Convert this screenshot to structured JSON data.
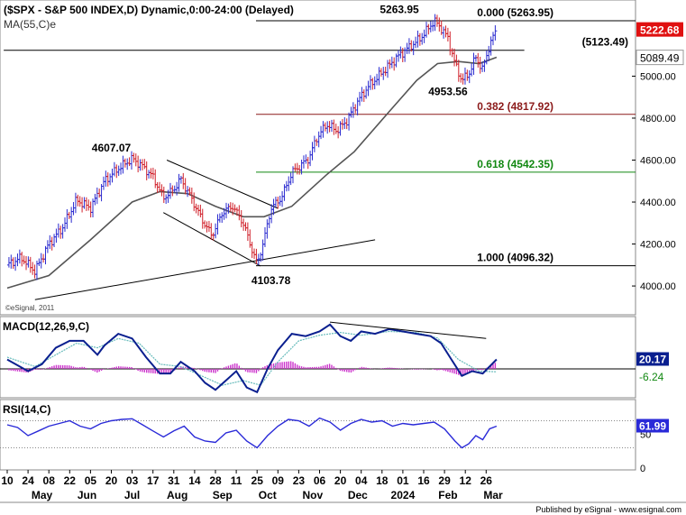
{
  "header": {
    "title": "($SPX - S&P 500 INDEX,D) Dynamic,0:00-24:00 (Delayed)",
    "ma_label": "MA(55,C)e",
    "copyright": "©eSignal, 2011",
    "footer": "Published by eSignal - www.esignal.com"
  },
  "colors": {
    "up_bar": "#2b2bd0",
    "down_bar": "#d0202a",
    "ma": "#555555",
    "macd": "#0a1f8f",
    "signal": "#66bbbb",
    "histogram": "#cc33cc",
    "rsi": "#2a2ad8",
    "fib_red": "#8b1a1a",
    "fib_green": "#118811",
    "last_price_bg": "#e01010"
  },
  "chart_data": [
    {
      "type": "line",
      "panel": "price",
      "ylim": [
        3880,
        5320
      ],
      "yticks": [
        "4000.00",
        "4200.00",
        "4400.00",
        "4600.00",
        "4800.00",
        "5000.00"
      ],
      "price_path": [
        {
          "x": 0,
          "y": 4100
        },
        {
          "x": 4,
          "y": 4135
        },
        {
          "x": 8,
          "y": 4070
        },
        {
          "x": 12,
          "y": 4200
        },
        {
          "x": 16,
          "y": 4280
        },
        {
          "x": 20,
          "y": 4410
        },
        {
          "x": 24,
          "y": 4370
        },
        {
          "x": 28,
          "y": 4500
        },
        {
          "x": 32,
          "y": 4560
        },
        {
          "x": 36,
          "y": 4607
        },
        {
          "x": 39,
          "y": 4570
        },
        {
          "x": 42,
          "y": 4520
        },
        {
          "x": 45,
          "y": 4420
        },
        {
          "x": 48,
          "y": 4460
        },
        {
          "x": 50,
          "y": 4510
        },
        {
          "x": 53,
          "y": 4420
        },
        {
          "x": 56,
          "y": 4320
        },
        {
          "x": 59,
          "y": 4240
        },
        {
          "x": 62,
          "y": 4350
        },
        {
          "x": 65,
          "y": 4380
        },
        {
          "x": 68,
          "y": 4300
        },
        {
          "x": 70,
          "y": 4200
        },
        {
          "x": 72,
          "y": 4104
        },
        {
          "x": 74,
          "y": 4220
        },
        {
          "x": 76,
          "y": 4370
        },
        {
          "x": 79,
          "y": 4420
        },
        {
          "x": 82,
          "y": 4540
        },
        {
          "x": 85,
          "y": 4580
        },
        {
          "x": 87,
          "y": 4610
        },
        {
          "x": 89,
          "y": 4700
        },
        {
          "x": 92,
          "y": 4770
        },
        {
          "x": 95,
          "y": 4740
        },
        {
          "x": 98,
          "y": 4790
        },
        {
          "x": 101,
          "y": 4880
        },
        {
          "x": 104,
          "y": 4950
        },
        {
          "x": 107,
          "y": 5000
        },
        {
          "x": 110,
          "y": 5050
        },
        {
          "x": 113,
          "y": 5100
        },
        {
          "x": 116,
          "y": 5140
        },
        {
          "x": 119,
          "y": 5180
        },
        {
          "x": 121,
          "y": 5220
        },
        {
          "x": 123,
          "y": 5264
        },
        {
          "x": 125,
          "y": 5230
        },
        {
          "x": 127,
          "y": 5180
        },
        {
          "x": 129,
          "y": 5060
        },
        {
          "x": 131,
          "y": 4980
        },
        {
          "x": 133,
          "y": 5010
        },
        {
          "x": 135,
          "y": 5090
        },
        {
          "x": 137,
          "y": 5030
        },
        {
          "x": 139,
          "y": 5150
        },
        {
          "x": 141,
          "y": 5222
        }
      ],
      "ma_path": [
        {
          "x": 0,
          "y": 3990
        },
        {
          "x": 12,
          "y": 4050
        },
        {
          "x": 24,
          "y": 4220
        },
        {
          "x": 36,
          "y": 4400
        },
        {
          "x": 44,
          "y": 4450
        },
        {
          "x": 52,
          "y": 4440
        },
        {
          "x": 60,
          "y": 4380
        },
        {
          "x": 68,
          "y": 4330
        },
        {
          "x": 74,
          "y": 4330
        },
        {
          "x": 82,
          "y": 4380
        },
        {
          "x": 92,
          "y": 4530
        },
        {
          "x": 100,
          "y": 4640
        },
        {
          "x": 110,
          "y": 4830
        },
        {
          "x": 118,
          "y": 4980
        },
        {
          "x": 124,
          "y": 5060
        },
        {
          "x": 130,
          "y": 5070
        },
        {
          "x": 136,
          "y": 5060
        },
        {
          "x": 141,
          "y": 5090
        }
      ],
      "fib_levels": [
        {
          "label": "0.000 (5263.95)",
          "value": 5263.95
        },
        {
          "label": "0.382 (4817.92)",
          "value": 4817.92
        },
        {
          "label": "0.618 (4542.35)",
          "value": 4542.35
        },
        {
          "label": "1.000 (4096.32)",
          "value": 4096.32
        }
      ],
      "level_line": {
        "label": "(5123.49)",
        "value": 5123.49
      },
      "annotations": [
        {
          "text": "5263.95",
          "x": 113,
          "y": 5300
        },
        {
          "text": "4607.07",
          "x": 30,
          "y": 4640
        },
        {
          "text": "4953.56",
          "x": 127,
          "y": 4910
        },
        {
          "text": "4103.78",
          "x": 76,
          "y": 4010
        }
      ],
      "trendlines": [
        {
          "x1": 46,
          "y1": 4600,
          "x2": 78,
          "y2": 4370
        },
        {
          "x1": 45,
          "y1": 4350,
          "x2": 73,
          "y2": 4095
        },
        {
          "x1": 8,
          "y1": 3935,
          "x2": 106,
          "y2": 4220
        },
        {
          "x1": -1,
          "y1": 5123.49,
          "x2": 149,
          "y2": 5123.49
        }
      ],
      "last_price": "5222.68",
      "ma_value": "5089.49"
    },
    {
      "type": "line",
      "panel": "macd",
      "title": "MACD(12,26,9,C)",
      "ylim": [
        -60,
        110
      ],
      "macd_path": [
        {
          "x": 0,
          "y": 20
        },
        {
          "x": 6,
          "y": -5
        },
        {
          "x": 10,
          "y": 10
        },
        {
          "x": 14,
          "y": 45
        },
        {
          "x": 18,
          "y": 60
        },
        {
          "x": 22,
          "y": 60
        },
        {
          "x": 26,
          "y": 30
        },
        {
          "x": 28,
          "y": 50
        },
        {
          "x": 32,
          "y": 75
        },
        {
          "x": 36,
          "y": 65
        },
        {
          "x": 40,
          "y": 25
        },
        {
          "x": 44,
          "y": -10
        },
        {
          "x": 47,
          "y": -10
        },
        {
          "x": 50,
          "y": 15
        },
        {
          "x": 54,
          "y": -5
        },
        {
          "x": 57,
          "y": -30
        },
        {
          "x": 60,
          "y": -45
        },
        {
          "x": 63,
          "y": -25
        },
        {
          "x": 66,
          "y": -5
        },
        {
          "x": 69,
          "y": -40
        },
        {
          "x": 72,
          "y": -50
        },
        {
          "x": 75,
          "y": 0
        },
        {
          "x": 78,
          "y": 40
        },
        {
          "x": 82,
          "y": 75
        },
        {
          "x": 86,
          "y": 70
        },
        {
          "x": 90,
          "y": 80
        },
        {
          "x": 93,
          "y": 95
        },
        {
          "x": 96,
          "y": 70
        },
        {
          "x": 99,
          "y": 60
        },
        {
          "x": 102,
          "y": 80
        },
        {
          "x": 106,
          "y": 75
        },
        {
          "x": 110,
          "y": 85
        },
        {
          "x": 114,
          "y": 80
        },
        {
          "x": 118,
          "y": 75
        },
        {
          "x": 122,
          "y": 70
        },
        {
          "x": 125,
          "y": 55
        },
        {
          "x": 128,
          "y": 20
        },
        {
          "x": 131,
          "y": -15
        },
        {
          "x": 134,
          "y": -5
        },
        {
          "x": 137,
          "y": -10
        },
        {
          "x": 141,
          "y": 20.17
        }
      ],
      "signal_path": [
        {
          "x": 0,
          "y": 25
        },
        {
          "x": 8,
          "y": 5
        },
        {
          "x": 14,
          "y": 30
        },
        {
          "x": 20,
          "y": 55
        },
        {
          "x": 26,
          "y": 45
        },
        {
          "x": 32,
          "y": 65
        },
        {
          "x": 38,
          "y": 55
        },
        {
          "x": 44,
          "y": 10
        },
        {
          "x": 50,
          "y": 5
        },
        {
          "x": 56,
          "y": -15
        },
        {
          "x": 62,
          "y": -35
        },
        {
          "x": 68,
          "y": -25
        },
        {
          "x": 73,
          "y": -35
        },
        {
          "x": 78,
          "y": 15
        },
        {
          "x": 84,
          "y": 60
        },
        {
          "x": 90,
          "y": 72
        },
        {
          "x": 96,
          "y": 78
        },
        {
          "x": 102,
          "y": 72
        },
        {
          "x": 110,
          "y": 80
        },
        {
          "x": 118,
          "y": 78
        },
        {
          "x": 124,
          "y": 66
        },
        {
          "x": 130,
          "y": 20
        },
        {
          "x": 136,
          "y": -5
        },
        {
          "x": 141,
          "y": -6.24
        }
      ],
      "divergence_line": {
        "x1": 93,
        "y1": 100,
        "x2": 138,
        "y2": 65
      },
      "macd_value": "20.17",
      "signal_value": "-6.24"
    },
    {
      "type": "line",
      "panel": "rsi",
      "title": "RSI(14,C)",
      "ylim": [
        0,
        100
      ],
      "yticks": [
        "50",
        "0"
      ],
      "overbought": 70,
      "oversold": 30,
      "rsi_path": [
        {
          "x": 0,
          "y": 64
        },
        {
          "x": 3,
          "y": 60
        },
        {
          "x": 6,
          "y": 48
        },
        {
          "x": 9,
          "y": 55
        },
        {
          "x": 12,
          "y": 62
        },
        {
          "x": 15,
          "y": 66
        },
        {
          "x": 18,
          "y": 70
        },
        {
          "x": 21,
          "y": 62
        },
        {
          "x": 24,
          "y": 58
        },
        {
          "x": 27,
          "y": 66
        },
        {
          "x": 30,
          "y": 70
        },
        {
          "x": 33,
          "y": 72
        },
        {
          "x": 36,
          "y": 73
        },
        {
          "x": 39,
          "y": 64
        },
        {
          "x": 42,
          "y": 55
        },
        {
          "x": 45,
          "y": 46
        },
        {
          "x": 48,
          "y": 55
        },
        {
          "x": 51,
          "y": 62
        },
        {
          "x": 54,
          "y": 46
        },
        {
          "x": 57,
          "y": 40
        },
        {
          "x": 60,
          "y": 38
        },
        {
          "x": 63,
          "y": 52
        },
        {
          "x": 66,
          "y": 56
        },
        {
          "x": 69,
          "y": 40
        },
        {
          "x": 72,
          "y": 30
        },
        {
          "x": 75,
          "y": 48
        },
        {
          "x": 78,
          "y": 62
        },
        {
          "x": 81,
          "y": 72
        },
        {
          "x": 84,
          "y": 70
        },
        {
          "x": 87,
          "y": 62
        },
        {
          "x": 90,
          "y": 74
        },
        {
          "x": 93,
          "y": 68
        },
        {
          "x": 96,
          "y": 56
        },
        {
          "x": 99,
          "y": 66
        },
        {
          "x": 102,
          "y": 72
        },
        {
          "x": 105,
          "y": 68
        },
        {
          "x": 108,
          "y": 70
        },
        {
          "x": 111,
          "y": 62
        },
        {
          "x": 114,
          "y": 66
        },
        {
          "x": 117,
          "y": 64
        },
        {
          "x": 120,
          "y": 66
        },
        {
          "x": 123,
          "y": 68
        },
        {
          "x": 126,
          "y": 58
        },
        {
          "x": 129,
          "y": 40
        },
        {
          "x": 131,
          "y": 30
        },
        {
          "x": 133,
          "y": 36
        },
        {
          "x": 135,
          "y": 48
        },
        {
          "x": 137,
          "y": 42
        },
        {
          "x": 139,
          "y": 58
        },
        {
          "x": 141,
          "y": 61.99
        }
      ],
      "rsi_value": "61.99"
    }
  ],
  "x_axis": {
    "ticks": [
      {
        "label": "10",
        "x": 0
      },
      {
        "label": "24",
        "x": 6
      },
      {
        "label": "08",
        "x": 12
      },
      {
        "label": "22",
        "x": 18
      },
      {
        "label": "05",
        "x": 24
      },
      {
        "label": "20",
        "x": 30
      },
      {
        "label": "03",
        "x": 36
      },
      {
        "label": "17",
        "x": 42
      },
      {
        "label": "31",
        "x": 48
      },
      {
        "label": "14",
        "x": 54
      },
      {
        "label": "28",
        "x": 60
      },
      {
        "label": "11",
        "x": 66
      },
      {
        "label": "25",
        "x": 72
      },
      {
        "label": "09",
        "x": 78
      },
      {
        "label": "23",
        "x": 84
      },
      {
        "label": "06",
        "x": 90
      },
      {
        "label": "20",
        "x": 96
      },
      {
        "label": "04",
        "x": 102
      },
      {
        "label": "18",
        "x": 108
      },
      {
        "label": "01",
        "x": 114
      },
      {
        "label": "16",
        "x": 120
      },
      {
        "label": "29",
        "x": 126
      },
      {
        "label": "12",
        "x": 132
      },
      {
        "label": "26",
        "x": 138
      }
    ],
    "months": [
      {
        "label": "May",
        "x": 10
      },
      {
        "label": "Jun",
        "x": 23
      },
      {
        "label": "Jul",
        "x": 36
      },
      {
        "label": "Aug",
        "x": 49
      },
      {
        "label": "Sep",
        "x": 62
      },
      {
        "label": "Oct",
        "x": 75
      },
      {
        "label": "Nov",
        "x": 88
      },
      {
        "label": "Dec",
        "x": 101
      },
      {
        "label": "2024",
        "x": 114
      },
      {
        "label": "Feb",
        "x": 127
      },
      {
        "label": "Mar",
        "x": 140
      }
    ]
  }
}
